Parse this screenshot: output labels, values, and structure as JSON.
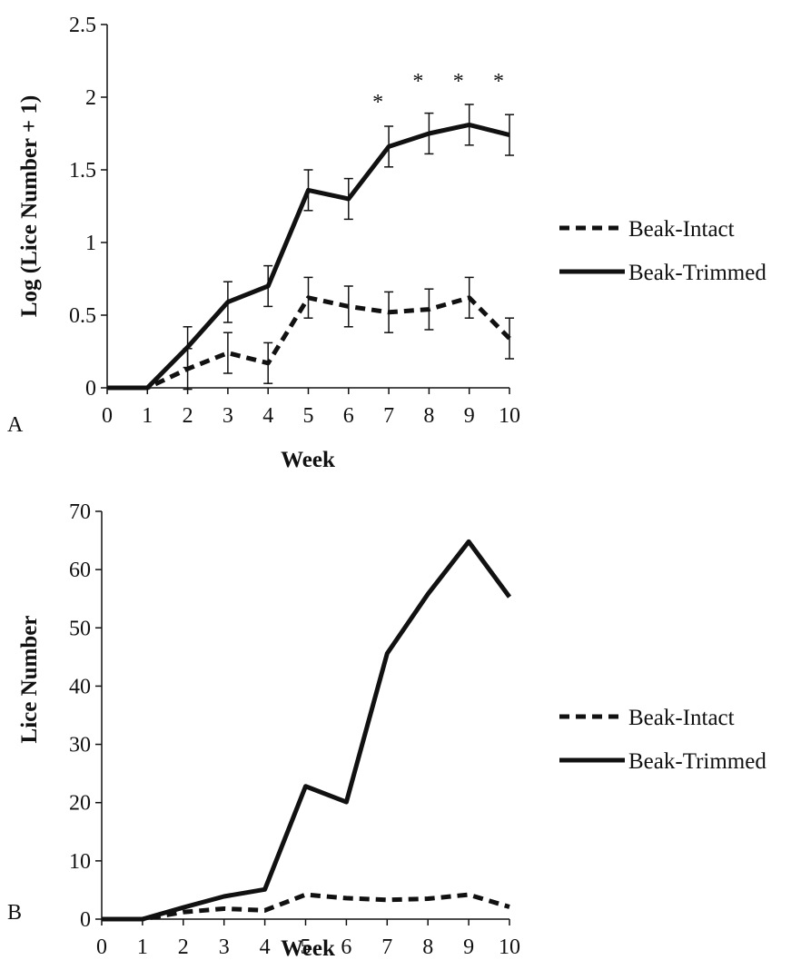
{
  "chart_data": [
    {
      "panel_label": "A",
      "type": "line",
      "title": "",
      "xlabel": "Week",
      "ylabel": "Log (Lice Number + 1)",
      "x": [
        0,
        1,
        2,
        3,
        4,
        5,
        6,
        7,
        8,
        9,
        10
      ],
      "xlim": [
        0,
        10
      ],
      "ylim": [
        0,
        2.5
      ],
      "xticks": [
        "0",
        "1",
        "2",
        "3",
        "4",
        "5",
        "6",
        "7",
        "8",
        "9",
        "10"
      ],
      "yticks": [
        "0",
        "0.5",
        "1",
        "1.5",
        "2",
        "2.5"
      ],
      "grid": false,
      "legend_position": "right",
      "series": [
        {
          "name": "Beak-Intact",
          "line_style": "dashed",
          "color": "#111111",
          "values": [
            0,
            0,
            0.13,
            0.24,
            0.17,
            0.62,
            0.56,
            0.52,
            0.54,
            0.62,
            0.34
          ],
          "error": [
            0,
            0,
            0.14,
            0.14,
            0.14,
            0.14,
            0.14,
            0.14,
            0.14,
            0.14,
            0.14
          ]
        },
        {
          "name": "Beak-Trimmed",
          "line_style": "solid",
          "color": "#111111",
          "values": [
            0,
            0,
            0.28,
            0.59,
            0.7,
            1.36,
            1.3,
            1.66,
            1.75,
            1.81,
            1.74
          ],
          "error": [
            0,
            0,
            0.14,
            0.14,
            0.14,
            0.14,
            0.14,
            0.14,
            0.14,
            0.14,
            0.14
          ]
        }
      ],
      "annotations": [
        {
          "text": "*",
          "x": 7
        },
        {
          "text": "*",
          "x": 8
        },
        {
          "text": "*",
          "x": 9
        },
        {
          "text": "*",
          "x": 10
        }
      ]
    },
    {
      "panel_label": "B",
      "type": "line",
      "title": "",
      "xlabel": "Week",
      "ylabel": "Lice Number",
      "x": [
        0,
        1,
        2,
        3,
        4,
        5,
        6,
        7,
        8,
        9,
        10
      ],
      "xlim": [
        0,
        10
      ],
      "ylim": [
        0,
        70
      ],
      "xticks": [
        "0",
        "1",
        "2",
        "3",
        "4",
        "5",
        "6",
        "7",
        "8",
        "9",
        "10"
      ],
      "yticks": [
        "0",
        "10",
        "20",
        "30",
        "40",
        "50",
        "60",
        "70"
      ],
      "grid": false,
      "legend_position": "right",
      "series": [
        {
          "name": "Beak-Intact",
          "line_style": "dashed",
          "color": "#111111",
          "values": [
            0,
            0,
            1.2,
            1.8,
            1.5,
            4.2,
            3.6,
            3.3,
            3.5,
            4.2,
            2.1
          ]
        },
        {
          "name": "Beak-Trimmed",
          "line_style": "solid",
          "color": "#111111",
          "values": [
            0,
            0,
            2.0,
            3.9,
            5.1,
            22.8,
            20.1,
            45.6,
            55.8,
            64.8,
            55.3
          ]
        }
      ]
    }
  ]
}
